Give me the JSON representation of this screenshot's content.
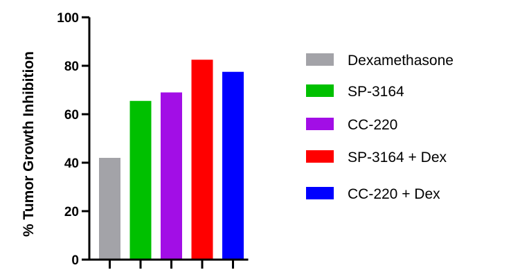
{
  "chart_data": {
    "type": "bar",
    "ylabel": "% Tumor Growth Inhibition",
    "xlabel": "",
    "ylim": [
      0,
      100
    ],
    "yticks": [
      0,
      20,
      40,
      60,
      80,
      100
    ],
    "grid": false,
    "legend_position": "right",
    "categories": [
      "Dexamethasone",
      "SP-3164",
      "CC-220",
      "SP-3164 + Dex",
      "CC-220 + Dex"
    ],
    "values": [
      42,
      65.5,
      69,
      82.5,
      77.5
    ],
    "colors": [
      "#a3a3a8",
      "#00c000",
      "#a20ee6",
      "#ff0000",
      "#0000ff"
    ]
  }
}
